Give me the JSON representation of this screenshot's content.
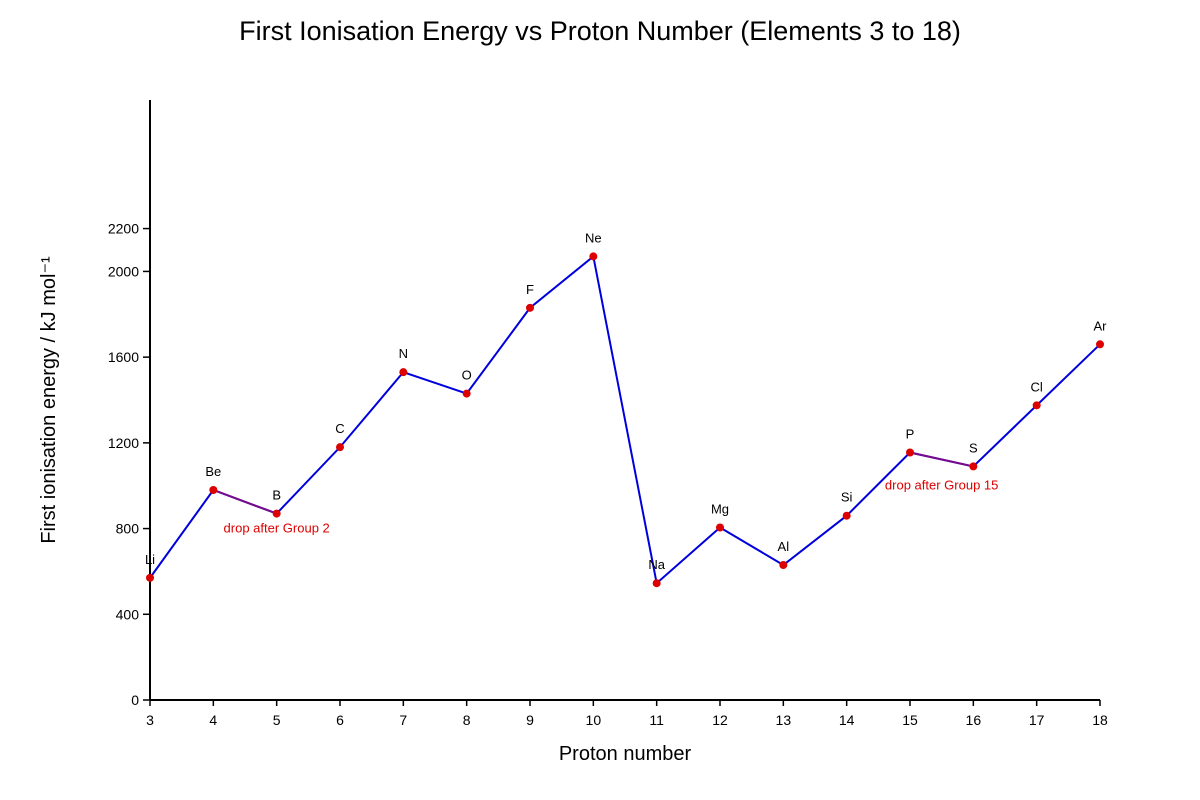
{
  "chart_data": {
    "type": "line",
    "title": "First Ionisation Energy vs Proton Number (Elements 3 to 18)",
    "xlabel": "Proton number",
    "ylabel": "First ionisation energy / kJ mol⁻¹",
    "xlim": [
      3,
      18
    ],
    "ylim": [
      0,
      2800
    ],
    "x_ticks": [
      3,
      4,
      5,
      6,
      7,
      8,
      9,
      10,
      11,
      12,
      13,
      14,
      15,
      16,
      17,
      18
    ],
    "y_ticks": [
      0,
      400,
      800,
      1200,
      1600,
      2000,
      2200
    ],
    "grid": false,
    "series": [
      {
        "x": [
          3,
          4,
          5,
          6,
          7,
          8,
          9,
          10,
          11,
          12,
          13,
          14,
          15,
          16,
          17,
          18
        ],
        "y": [
          570,
          980,
          870,
          1180,
          1530,
          1430,
          1830,
          2070,
          545,
          805,
          630,
          860,
          1155,
          1090,
          1375,
          1660
        ],
        "point_labels": [
          "Li",
          "Be",
          "B",
          "C",
          "N",
          "O",
          "F",
          "Ne",
          "Na",
          "Mg",
          "Al",
          "Si",
          "P",
          "S",
          "Cl",
          "Ar"
        ],
        "line_color": "#0000dd",
        "marker_color": "#dd0000"
      }
    ],
    "highlight_segments": [
      {
        "x": [
          4,
          5
        ],
        "color": "#7a0a8a"
      },
      {
        "x": [
          15,
          16
        ],
        "color": "#7a0a8a"
      }
    ],
    "annotations": [
      {
        "text": "drop after Group 2",
        "x": 5.0,
        "y": 800,
        "color": "#dd0000"
      },
      {
        "text": "drop after Group 15",
        "x": 15.5,
        "y": 1000,
        "color": "#dd0000"
      }
    ]
  }
}
